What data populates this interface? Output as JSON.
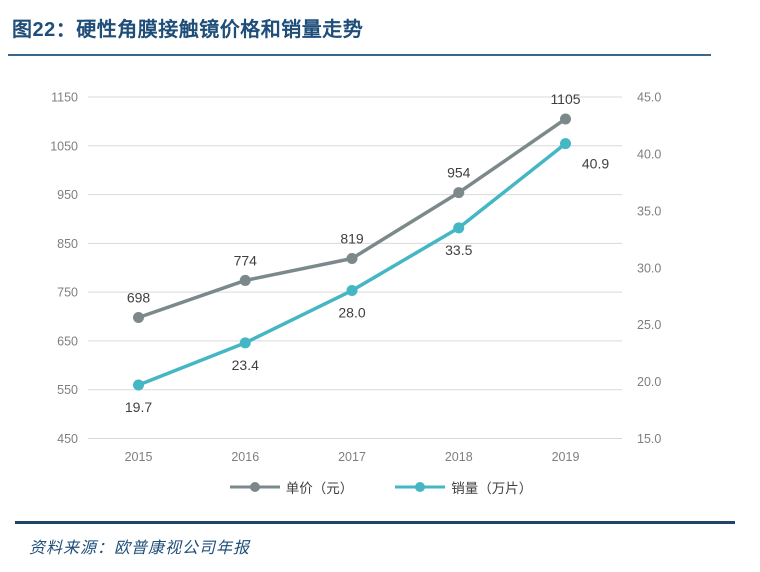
{
  "figure": {
    "title": "图22：硬性角膜接触镜价格和销量走势",
    "source": "资料来源：欧普康视公司年报"
  },
  "colors": {
    "title_navy": "#1F4E79",
    "top_rule": "#3A678E",
    "bottom_rule": "#1F4568",
    "grid": "#D9D9D9",
    "axis_text": "#7F7F7F",
    "data_label_text": "#404040",
    "legend_text": "#404040",
    "price_series": "#7C898B",
    "sales_series": "#45B6C4"
  },
  "chart_data": {
    "type": "line",
    "title": "硬性角膜接触镜价格和销量走势",
    "categories": [
      "2015",
      "2016",
      "2017",
      "2018",
      "2019"
    ],
    "series": [
      {
        "name": "单价（元）",
        "key": "price",
        "axis": "left",
        "color": "#7C898B",
        "values": [
          698,
          774,
          819,
          954,
          1105
        ],
        "labels": [
          "698",
          "774",
          "819",
          "954",
          "1105"
        ]
      },
      {
        "name": "销量（万片）",
        "key": "sales",
        "axis": "right",
        "color": "#45B6C4",
        "values": [
          19.7,
          23.4,
          28.0,
          33.5,
          40.9
        ],
        "labels": [
          "19.7",
          "23.4",
          "28.0",
          "33.5",
          "40.9"
        ]
      }
    ],
    "left_axis": {
      "min": 450,
      "max": 1150,
      "step": 100,
      "ticks": [
        "1150",
        "1050",
        "950",
        "850",
        "750",
        "650",
        "550",
        "450"
      ]
    },
    "right_axis": {
      "min": 15.0,
      "max": 45.0,
      "step": 5.0,
      "ticks": [
        "45.0",
        "40.0",
        "35.0",
        "30.0",
        "25.0",
        "20.0",
        "15.0"
      ]
    },
    "grid": "horizontal",
    "legend_position": "bottom"
  }
}
